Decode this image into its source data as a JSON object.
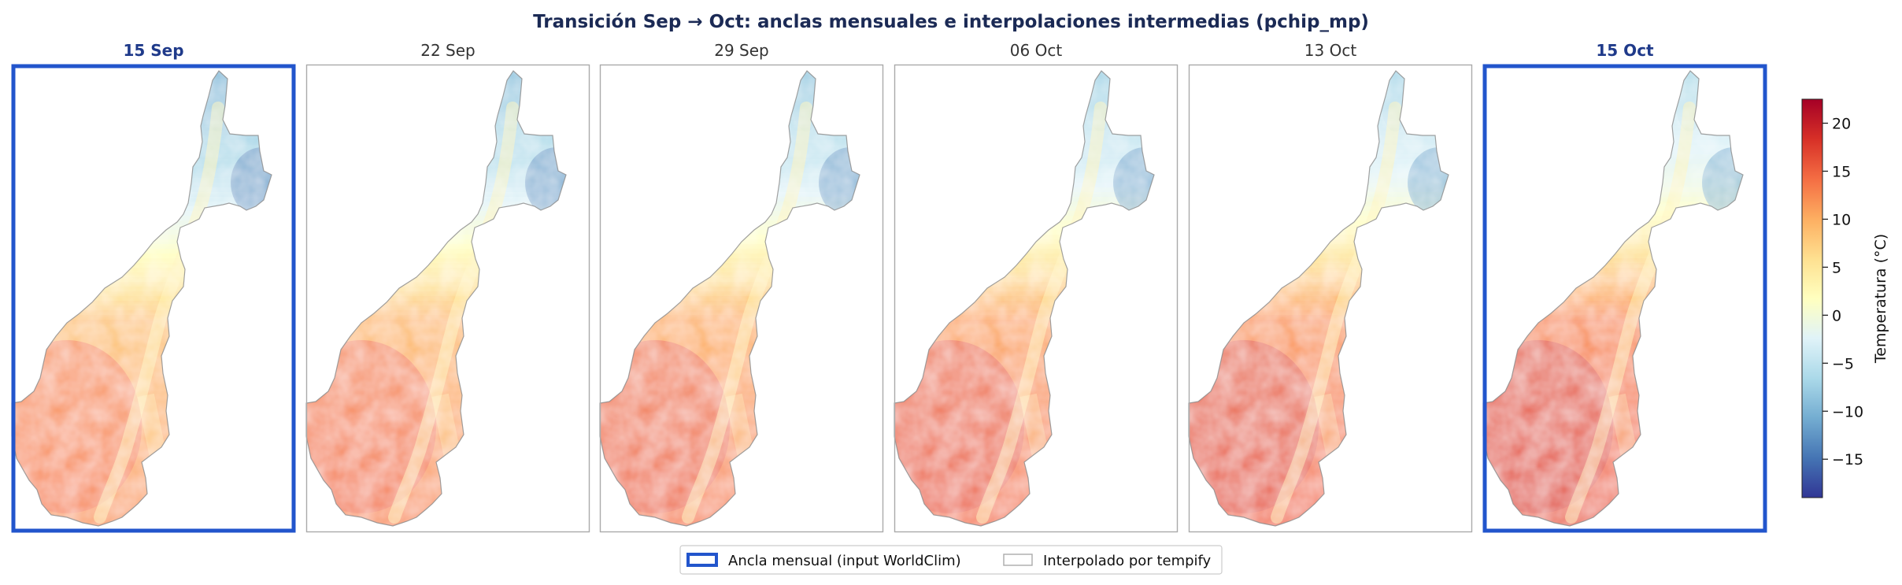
{
  "figure": {
    "title": "Transición Sep → Oct: anclas mensuales e interpolaciones intermedias (pchip_mp)",
    "title_color": "#1b2a55"
  },
  "panels": [
    {
      "label": "15 Sep",
      "kind": "anchor",
      "relative_warmth": 0.0
    },
    {
      "label": "22 Sep",
      "kind": "interpolated",
      "relative_warmth": 0.2
    },
    {
      "label": "29 Sep",
      "kind": "interpolated",
      "relative_warmth": 0.4
    },
    {
      "label": "06 Oct",
      "kind": "interpolated",
      "relative_warmth": 0.6
    },
    {
      "label": "13 Oct",
      "kind": "interpolated",
      "relative_warmth": 0.8
    },
    {
      "label": "15 Oct",
      "kind": "anchor",
      "relative_warmth": 1.0
    }
  ],
  "colors": {
    "anchor_border": "#2255cc",
    "anchor_label": "#1f3a8a",
    "interp_border": "#aaaaaa",
    "interp_label": "#333333"
  },
  "legend": {
    "items": [
      {
        "label": "Ancla mensual (input WorldClim)",
        "kind": "anchor"
      },
      {
        "label": "Interpolado por tempify",
        "kind": "interpolated"
      }
    ]
  },
  "chart_data": {
    "type": "heatmap",
    "colormap": "RdYlBu_r",
    "colorbar": {
      "label": "Temperatura (°C)",
      "range": [
        -19,
        22.5
      ],
      "ticks": [
        -15,
        -10,
        -5,
        0,
        5,
        10,
        15,
        20
      ],
      "tick_labels": [
        "−15",
        "−10",
        "−5",
        "0",
        "5",
        "10",
        "15",
        "20"
      ],
      "stops": [
        "#313695",
        "#4575b4",
        "#74add1",
        "#abd9e9",
        "#e0f3f8",
        "#ffffbf",
        "#fee090",
        "#fdae61",
        "#f46d43",
        "#d73027",
        "#a50026"
      ]
    }
  }
}
